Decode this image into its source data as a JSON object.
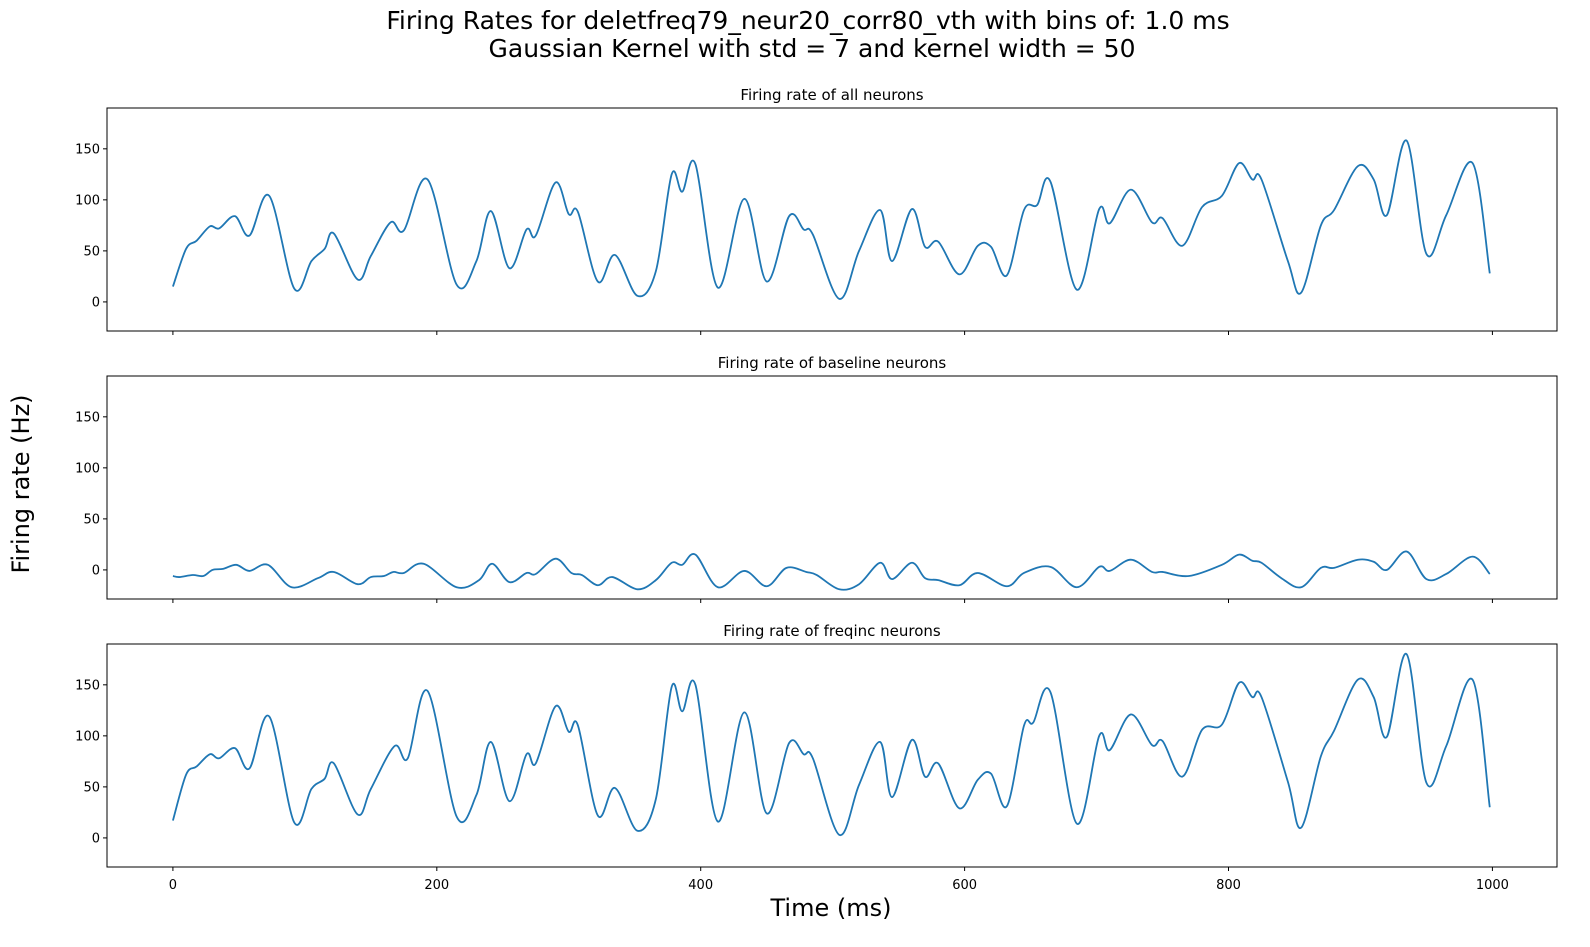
{
  "title": "Firing Rates for deletfreq79_neur20_corr80_vth with bins of: 1.0 ms",
  "subtitle": "Gaussian Kernel with std = 7 and kernel width = 50",
  "x_label": "Time (ms)",
  "y_label": "Firing rate (Hz)",
  "chart_data": [
    {
      "type": "line",
      "title": "Firing rate of all neurons",
      "color": "#1f77b4",
      "xlim": [
        -49.95,
        1048.95
      ],
      "ylim": [
        -28.5,
        190
      ],
      "xticks": [
        0,
        200,
        400,
        600,
        800,
        1000
      ],
      "yticks": [
        0,
        50,
        100,
        150
      ],
      "x": [
        0,
        10,
        18,
        28,
        35,
        47,
        58,
        73,
        92,
        105,
        115,
        122,
        140,
        150,
        165,
        175,
        193,
        215,
        230,
        241,
        255,
        268,
        275,
        290,
        300,
        307,
        322,
        335,
        352,
        366,
        378,
        386,
        396,
        413,
        433,
        450,
        467,
        478,
        485,
        505,
        520,
        536,
        545,
        560,
        570,
        580,
        596,
        610,
        620,
        632,
        645,
        655,
        665,
        685,
        702,
        710,
        726,
        742,
        750,
        765,
        780,
        795,
        808,
        818,
        825,
        845,
        855,
        870,
        880,
        898,
        910,
        920,
        935,
        950,
        965,
        985,
        998
      ],
      "values": [
        15,
        52,
        60,
        74,
        72,
        84,
        65,
        104,
        13,
        40,
        52,
        67,
        22,
        45,
        78,
        70,
        120,
        17,
        40,
        89,
        33,
        71,
        65,
        117,
        86,
        88,
        20,
        46,
        6,
        30,
        125,
        108,
        135,
        14,
        101,
        20,
        84,
        71,
        66,
        3,
        50,
        90,
        40,
        91,
        54,
        59,
        27,
        55,
        54,
        26,
        90,
        95,
        118,
        12,
        91,
        77,
        110,
        78,
        82,
        55,
        93,
        104,
        136,
        120,
        120,
        40,
        9,
        75,
        90,
        133,
        120,
        85,
        158,
        47,
        85,
        136,
        28
      ]
    },
    {
      "type": "line",
      "title": "Firing rate of baseline neurons",
      "color": "#1f77b4",
      "xlim": [
        -49.95,
        1048.95
      ],
      "ylim": [
        -28.5,
        190
      ],
      "xticks": [
        0,
        200,
        400,
        600,
        800,
        1000
      ],
      "yticks": [
        0,
        50,
        100,
        150
      ],
      "x": [
        0,
        5,
        15,
        23,
        30,
        38,
        48,
        58,
        72,
        90,
        110,
        122,
        140,
        150,
        160,
        167,
        175,
        190,
        215,
        232,
        242,
        255,
        268,
        275,
        290,
        302,
        310,
        322,
        333,
        352,
        366,
        378,
        386,
        396,
        413,
        433,
        450,
        465,
        480,
        488,
        505,
        520,
        536,
        545,
        560,
        570,
        580,
        596,
        610,
        632,
        645,
        665,
        685,
        702,
        710,
        726,
        742,
        750,
        770,
        795,
        808,
        818,
        825,
        840,
        855,
        870,
        880,
        898,
        910,
        920,
        935,
        950,
        965,
        985,
        998
      ],
      "values": [
        -6,
        -7,
        -5,
        -6,
        0,
        1,
        5,
        -1,
        5,
        -17,
        -8,
        -2,
        -14,
        -7,
        -6,
        -2,
        -3,
        6,
        -17,
        -10,
        6,
        -12,
        -3,
        -4,
        11,
        -3,
        -5,
        -15,
        -7,
        -19,
        -10,
        7,
        5,
        15,
        -17,
        -1,
        -16,
        2,
        -2,
        -5,
        -19,
        -14,
        7,
        -9,
        7,
        -8,
        -10,
        -15,
        -3,
        -16,
        -3,
        3,
        -17,
        3,
        -1,
        10,
        -2,
        -2,
        -6,
        5,
        15,
        9,
        7,
        -8,
        -17,
        2,
        2,
        10,
        8,
        0,
        18,
        -9,
        -4,
        13,
        -4
      ]
    },
    {
      "type": "line",
      "title": "Firing rate of freqinc neurons",
      "color": "#1f77b4",
      "xlim": [
        -49.95,
        1048.95
      ],
      "ylim": [
        -28.5,
        190
      ],
      "xticks": [
        0,
        200,
        400,
        600,
        800,
        1000
      ],
      "yticks": [
        0,
        50,
        100,
        150
      ],
      "x": [
        0,
        10,
        18,
        28,
        35,
        47,
        58,
        73,
        92,
        105,
        115,
        122,
        140,
        150,
        168,
        178,
        193,
        215,
        230,
        241,
        255,
        268,
        275,
        290,
        300,
        307,
        322,
        335,
        352,
        366,
        378,
        386,
        396,
        413,
        433,
        450,
        467,
        478,
        485,
        505,
        520,
        536,
        545,
        560,
        570,
        580,
        596,
        610,
        620,
        632,
        645,
        652,
        665,
        685,
        702,
        710,
        726,
        742,
        750,
        765,
        780,
        795,
        808,
        818,
        825,
        845,
        855,
        870,
        880,
        898,
        910,
        920,
        935,
        950,
        965,
        985,
        998
      ],
      "values": [
        17,
        62,
        70,
        82,
        78,
        88,
        68,
        119,
        15,
        48,
        58,
        73,
        23,
        48,
        90,
        78,
        144,
        21,
        42,
        94,
        36,
        82,
        73,
        129,
        104,
        110,
        22,
        49,
        7,
        38,
        148,
        124,
        150,
        16,
        123,
        24,
        93,
        82,
        78,
        3,
        52,
        94,
        40,
        96,
        60,
        73,
        29,
        57,
        63,
        31,
        110,
        113,
        143,
        14,
        100,
        86,
        121,
        91,
        95,
        60,
        106,
        111,
        152,
        138,
        138,
        55,
        10,
        80,
        105,
        155,
        138,
        99,
        180,
        54,
        90,
        155,
        30
      ]
    }
  ]
}
